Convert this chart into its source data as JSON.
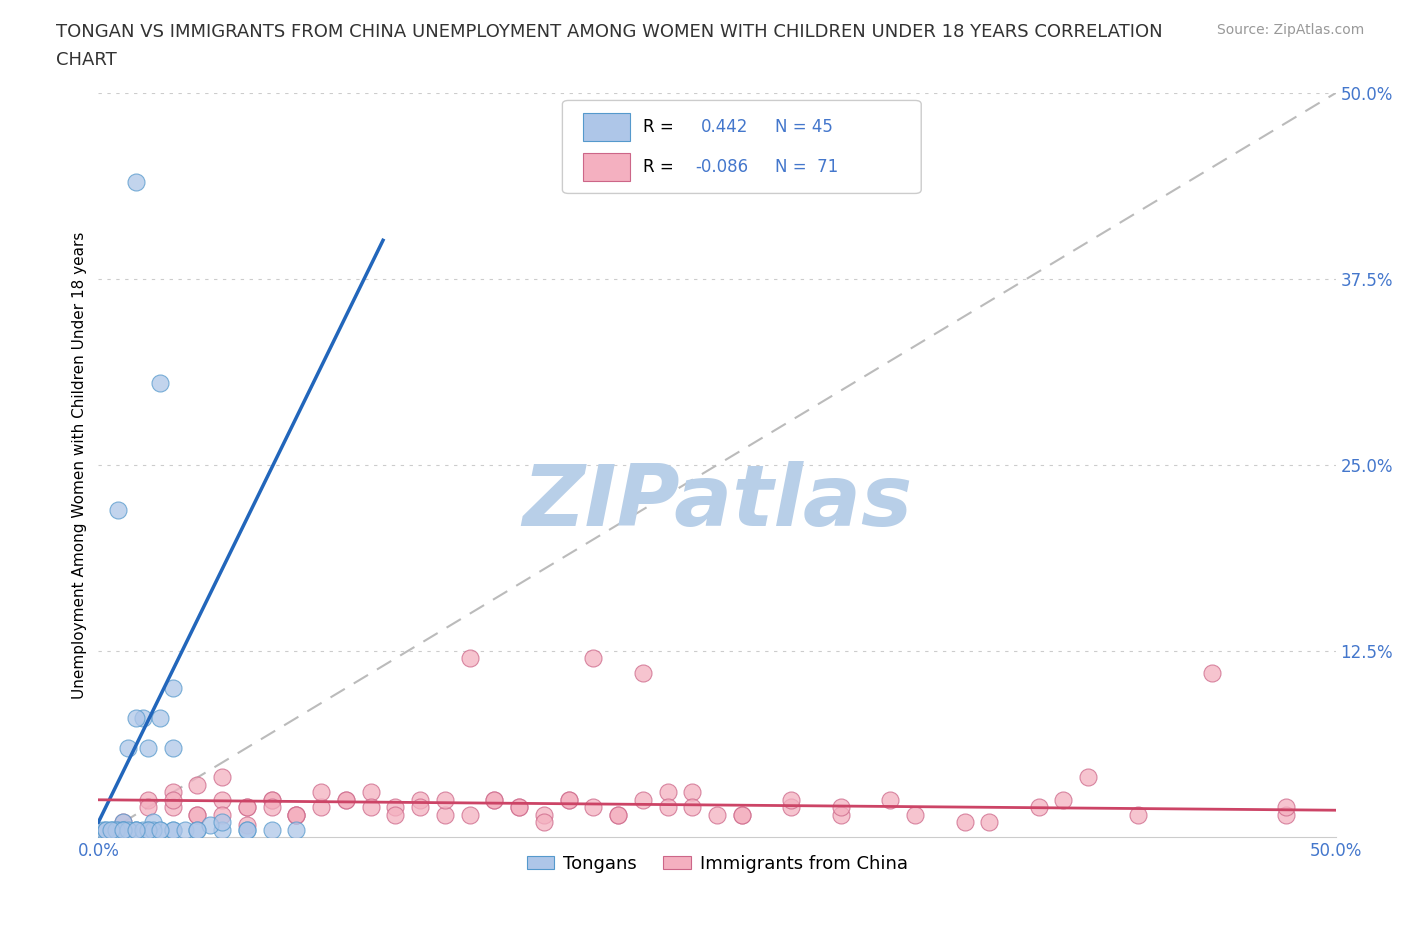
{
  "title_line1": "TONGAN VS IMMIGRANTS FROM CHINA UNEMPLOYMENT AMONG WOMEN WITH CHILDREN UNDER 18 YEARS CORRELATION",
  "title_line2": "CHART",
  "source": "Source: ZipAtlas.com",
  "ylabel": "Unemployment Among Women with Children Under 18 years",
  "xlim": [
    0.0,
    0.5
  ],
  "ylim": [
    0.0,
    0.5
  ],
  "grid_color": "#cccccc",
  "background_color": "#ffffff",
  "watermark": "ZIPatlas",
  "watermark_color": "#b8cfe8",
  "blue_scatter_color": "#aec6e8",
  "blue_edge_color": "#5599cc",
  "pink_scatter_color": "#f4b0c0",
  "pink_edge_color": "#cc6688",
  "blue_line_color": "#2266bb",
  "pink_line_color": "#cc4466",
  "identity_line_color": "#bbbbbb",
  "title_color": "#333333",
  "tick_label_color": "#4477cc",
  "legend_r_color": "#4477cc",
  "title_fontsize": 13,
  "axis_label_fontsize": 11,
  "tick_fontsize": 12,
  "legend_fontsize": 13,
  "r_blue": 0.442,
  "n_blue": 45,
  "r_pink": -0.086,
  "n_pink": 71,
  "tongans_x": [
    0.015,
    0.025,
    0.01,
    0.02,
    0.005,
    0.03,
    0.01,
    0.008,
    0.002,
    0.015,
    0.025,
    0.03,
    0.012,
    0.018,
    0.006,
    0.022,
    0.035,
    0.04,
    0.008,
    0.003,
    0.05,
    0.06,
    0.02,
    0.015,
    0.01,
    0.025,
    0.003,
    0.007,
    0.03,
    0.045,
    0.06,
    0.07,
    0.08,
    0.005,
    0.012,
    0.018,
    0.022,
    0.03,
    0.04,
    0.015,
    0.01,
    0.05,
    0.02,
    0.025,
    0.015
  ],
  "tongans_y": [
    0.44,
    0.005,
    0.01,
    0.06,
    0.005,
    0.005,
    0.005,
    0.005,
    0.005,
    0.005,
    0.305,
    0.005,
    0.06,
    0.08,
    0.005,
    0.01,
    0.005,
    0.005,
    0.22,
    0.005,
    0.005,
    0.005,
    0.005,
    0.005,
    0.005,
    0.08,
    0.005,
    0.005,
    0.06,
    0.008,
    0.005,
    0.005,
    0.005,
    0.005,
    0.005,
    0.005,
    0.005,
    0.1,
    0.005,
    0.08,
    0.005,
    0.01,
    0.005,
    0.005,
    0.005
  ],
  "china_x": [
    0.03,
    0.05,
    0.07,
    0.09,
    0.11,
    0.13,
    0.15,
    0.17,
    0.19,
    0.21,
    0.23,
    0.25,
    0.04,
    0.06,
    0.08,
    0.1,
    0.12,
    0.14,
    0.16,
    0.18,
    0.2,
    0.22,
    0.24,
    0.26,
    0.28,
    0.3,
    0.32,
    0.35,
    0.38,
    0.4,
    0.42,
    0.45,
    0.48,
    0.02,
    0.03,
    0.04,
    0.05,
    0.06,
    0.07,
    0.08,
    0.09,
    0.1,
    0.11,
    0.12,
    0.13,
    0.14,
    0.15,
    0.16,
    0.17,
    0.18,
    0.19,
    0.2,
    0.21,
    0.22,
    0.23,
    0.24,
    0.26,
    0.28,
    0.3,
    0.33,
    0.36,
    0.39,
    0.01,
    0.02,
    0.03,
    0.04,
    0.05,
    0.06,
    0.07,
    0.08,
    0.48
  ],
  "china_y": [
    0.03,
    0.04,
    0.025,
    0.02,
    0.03,
    0.025,
    0.12,
    0.02,
    0.025,
    0.015,
    0.03,
    0.015,
    0.035,
    0.02,
    0.015,
    0.025,
    0.02,
    0.015,
    0.025,
    0.015,
    0.12,
    0.11,
    0.03,
    0.015,
    0.02,
    0.015,
    0.025,
    0.01,
    0.02,
    0.04,
    0.015,
    0.11,
    0.015,
    0.025,
    0.02,
    0.015,
    0.025,
    0.02,
    0.025,
    0.015,
    0.03,
    0.025,
    0.02,
    0.015,
    0.02,
    0.025,
    0.015,
    0.025,
    0.02,
    0.01,
    0.025,
    0.02,
    0.015,
    0.025,
    0.02,
    0.02,
    0.015,
    0.025,
    0.02,
    0.015,
    0.01,
    0.025,
    0.01,
    0.02,
    0.025,
    0.015,
    0.015,
    0.008,
    0.02,
    0.015,
    0.02
  ]
}
